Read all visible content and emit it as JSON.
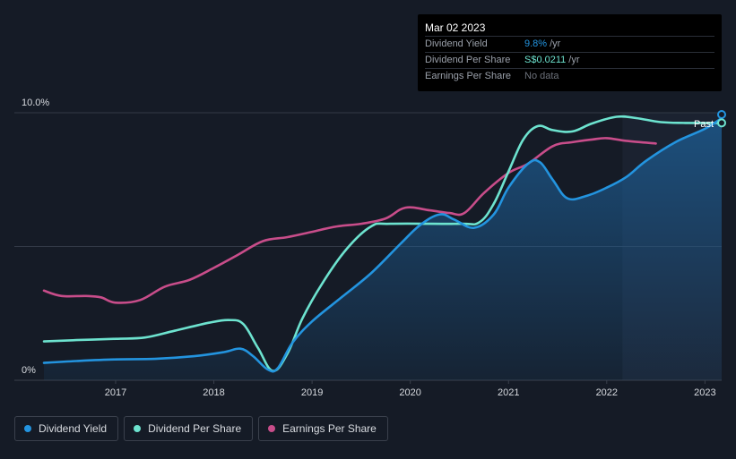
{
  "chart_data": {
    "type": "line",
    "title": "",
    "xlabel": "",
    "ylabel": "",
    "ylim": [
      0,
      10
    ],
    "y_ticks": [
      {
        "value": 0,
        "label": "0%"
      },
      {
        "value": 10,
        "label": "10.0%"
      }
    ],
    "x_ticks": [
      {
        "value": 2017,
        "label": "2017"
      },
      {
        "value": 2018,
        "label": "2018"
      },
      {
        "value": 2019,
        "label": "2019"
      },
      {
        "value": 2020,
        "label": "2020"
      },
      {
        "value": 2021,
        "label": "2021"
      },
      {
        "value": 2022,
        "label": "2022"
      },
      {
        "value": 2023,
        "label": "2023"
      }
    ],
    "xlim": [
      2015.85,
      2023.17
    ],
    "past_region_start": 2022.16,
    "past_label": "Past",
    "series": [
      {
        "name": "Dividend Yield",
        "color": "#2394df",
        "filled": true,
        "points": [
          [
            2016.27,
            0.65
          ],
          [
            2016.6,
            0.72
          ],
          [
            2017.0,
            0.78
          ],
          [
            2017.4,
            0.8
          ],
          [
            2017.8,
            0.9
          ],
          [
            2018.1,
            1.05
          ],
          [
            2018.27,
            1.18
          ],
          [
            2018.4,
            0.9
          ],
          [
            2018.55,
            0.4
          ],
          [
            2018.65,
            0.45
          ],
          [
            2018.8,
            1.4
          ],
          [
            2019.0,
            2.2
          ],
          [
            2019.3,
            3.1
          ],
          [
            2019.6,
            4.0
          ],
          [
            2019.9,
            5.1
          ],
          [
            2020.1,
            5.8
          ],
          [
            2020.3,
            6.2
          ],
          [
            2020.45,
            6.0
          ],
          [
            2020.65,
            5.7
          ],
          [
            2020.85,
            6.2
          ],
          [
            2021.0,
            7.2
          ],
          [
            2021.2,
            8.1
          ],
          [
            2021.32,
            8.15
          ],
          [
            2021.45,
            7.5
          ],
          [
            2021.6,
            6.8
          ],
          [
            2021.8,
            6.9
          ],
          [
            2022.0,
            7.2
          ],
          [
            2022.2,
            7.6
          ],
          [
            2022.4,
            8.2
          ],
          [
            2022.7,
            8.9
          ],
          [
            2023.0,
            9.4
          ],
          [
            2023.17,
            9.8
          ]
        ]
      },
      {
        "name": "Dividend Per Share",
        "color": "#6de3cf",
        "filled": false,
        "points": [
          [
            2016.27,
            1.45
          ],
          [
            2016.6,
            1.5
          ],
          [
            2017.0,
            1.55
          ],
          [
            2017.3,
            1.6
          ],
          [
            2017.6,
            1.85
          ],
          [
            2017.95,
            2.15
          ],
          [
            2018.15,
            2.25
          ],
          [
            2018.3,
            2.1
          ],
          [
            2018.45,
            1.2
          ],
          [
            2018.6,
            0.35
          ],
          [
            2018.75,
            1.0
          ],
          [
            2018.9,
            2.3
          ],
          [
            2019.1,
            3.6
          ],
          [
            2019.35,
            4.9
          ],
          [
            2019.6,
            5.75
          ],
          [
            2019.8,
            5.85
          ],
          [
            2020.5,
            5.85
          ],
          [
            2020.7,
            5.9
          ],
          [
            2020.85,
            6.6
          ],
          [
            2021.0,
            7.8
          ],
          [
            2021.15,
            9.0
          ],
          [
            2021.3,
            9.5
          ],
          [
            2021.45,
            9.35
          ],
          [
            2021.65,
            9.3
          ],
          [
            2021.85,
            9.6
          ],
          [
            2022.1,
            9.85
          ],
          [
            2022.3,
            9.8
          ],
          [
            2022.55,
            9.65
          ],
          [
            2022.8,
            9.62
          ],
          [
            2023.17,
            9.62
          ]
        ]
      },
      {
        "name": "Earnings Per Share",
        "color": "#c84d8a",
        "filled": false,
        "points": [
          [
            2016.27,
            3.35
          ],
          [
            2016.45,
            3.15
          ],
          [
            2016.7,
            3.15
          ],
          [
            2016.85,
            3.1
          ],
          [
            2017.0,
            2.9
          ],
          [
            2017.25,
            3.0
          ],
          [
            2017.5,
            3.5
          ],
          [
            2017.75,
            3.75
          ],
          [
            2018.0,
            4.2
          ],
          [
            2018.25,
            4.7
          ],
          [
            2018.5,
            5.2
          ],
          [
            2018.75,
            5.35
          ],
          [
            2019.0,
            5.55
          ],
          [
            2019.25,
            5.75
          ],
          [
            2019.5,
            5.85
          ],
          [
            2019.75,
            6.05
          ],
          [
            2019.95,
            6.45
          ],
          [
            2020.2,
            6.35
          ],
          [
            2020.4,
            6.25
          ],
          [
            2020.55,
            6.25
          ],
          [
            2020.75,
            7.0
          ],
          [
            2021.0,
            7.75
          ],
          [
            2021.2,
            8.1
          ],
          [
            2021.45,
            8.75
          ],
          [
            2021.65,
            8.9
          ],
          [
            2021.85,
            9.0
          ],
          [
            2022.0,
            9.05
          ],
          [
            2022.2,
            8.95
          ],
          [
            2022.5,
            8.85
          ]
        ]
      }
    ]
  },
  "tooltip": {
    "date": "Mar 02 2023",
    "rows": [
      {
        "label": "Dividend Yield",
        "value": "9.8%",
        "unit": "/yr",
        "color": "#2394df"
      },
      {
        "label": "Dividend Per Share",
        "value": "S$0.0211",
        "unit": "/yr",
        "color": "#6de3cf"
      },
      {
        "label": "Earnings Per Share",
        "value": "No data",
        "unit": "",
        "color": "#6c717a"
      }
    ]
  },
  "legend": [
    {
      "label": "Dividend Yield",
      "color": "#2394df"
    },
    {
      "label": "Dividend Per Share",
      "color": "#6de3cf"
    },
    {
      "label": "Earnings Per Share",
      "color": "#c84d8a"
    }
  ]
}
